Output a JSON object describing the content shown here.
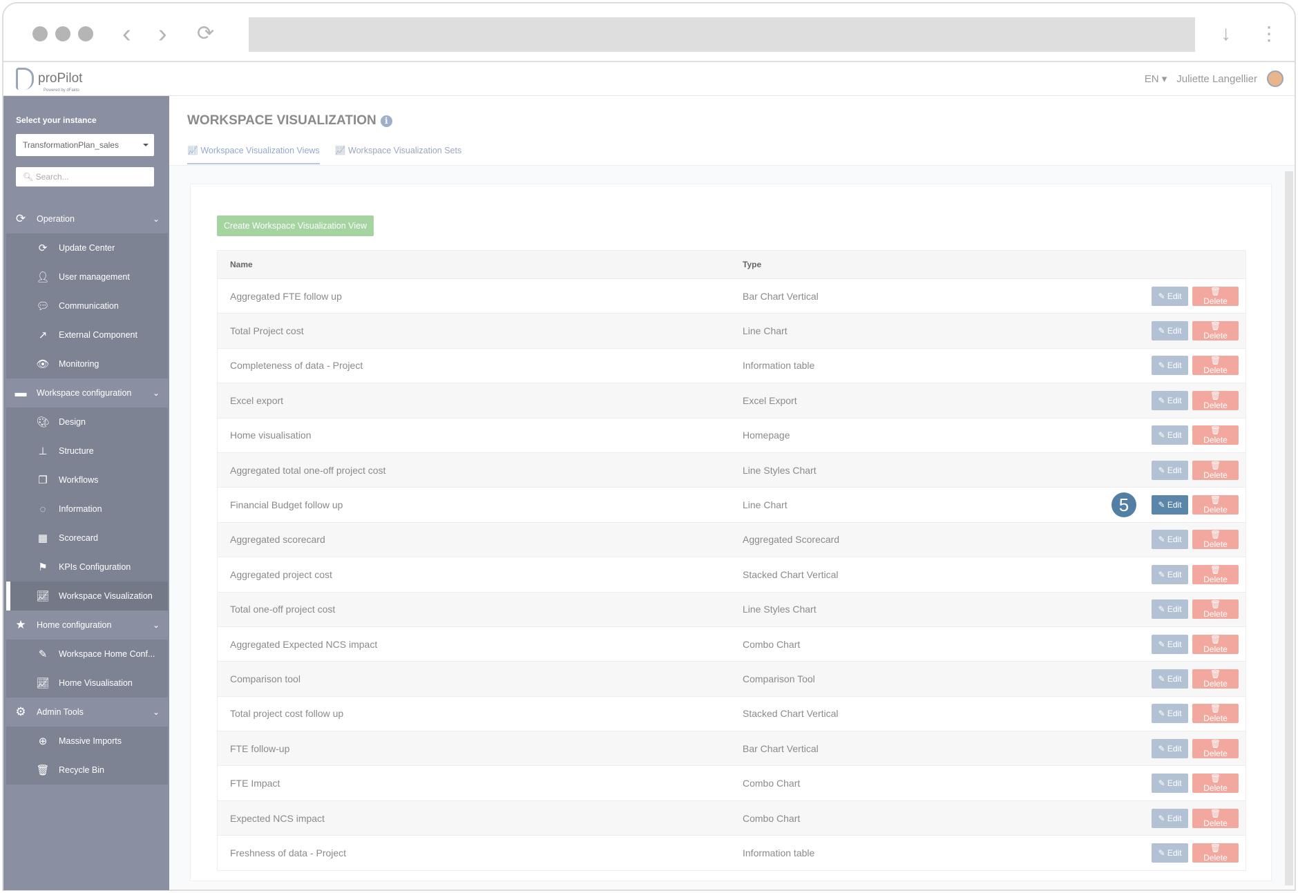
{
  "header": {
    "app_name": "proPilot",
    "powered_by": "Powered by dFakto",
    "language": "EN",
    "user_name": "Juliette Langellier"
  },
  "sidebar": {
    "instance_label": "Select your instance",
    "instance_value": "TransformationPlan_sales",
    "search_placeholder": "Search...",
    "groups": [
      {
        "label": "Operation",
        "icon": "refresh-icon",
        "items": [
          {
            "label": "Update Center",
            "icon": "refresh-icon"
          },
          {
            "label": "User management",
            "icon": "user-icon"
          },
          {
            "label": "Communication",
            "icon": "comments-icon"
          },
          {
            "label": "External Component",
            "icon": "share-square-icon"
          },
          {
            "label": "Monitoring",
            "icon": "eye-icon"
          }
        ]
      },
      {
        "label": "Workspace configuration",
        "icon": "folder-icon",
        "items": [
          {
            "label": "Design",
            "icon": "palette-icon"
          },
          {
            "label": "Structure",
            "icon": "sitemap-icon"
          },
          {
            "label": "Workflows",
            "icon": "copy-icon"
          },
          {
            "label": "Information",
            "icon": "comment-icon"
          },
          {
            "label": "Scorecard",
            "icon": "table-icon"
          },
          {
            "label": "KPIs Configuration",
            "icon": "flag-icon"
          },
          {
            "label": "Workspace Visualization",
            "icon": "line-chart-icon",
            "active": true
          }
        ]
      },
      {
        "label": "Home configuration",
        "icon": "star-icon",
        "items": [
          {
            "label": "Workspace Home Conf...",
            "icon": "edit-icon"
          },
          {
            "label": "Home Visualisation",
            "icon": "line-chart-icon"
          }
        ]
      },
      {
        "label": "Admin Tools",
        "icon": "gear-icon",
        "items": [
          {
            "label": "Massive Imports",
            "icon": "download-circle-icon"
          },
          {
            "label": "Recycle Bin",
            "icon": "trash-icon"
          }
        ]
      }
    ]
  },
  "main": {
    "title": "WORKSPACE VISUALIZATION",
    "tabs": [
      {
        "label": "Workspace Visualization Views",
        "active": true
      },
      {
        "label": "Workspace Visualization Sets"
      }
    ],
    "create_label": "Create Workspace Visualization View",
    "columns": [
      "Name",
      "Type"
    ],
    "edit_label": "Edit",
    "delete_label": "Delete",
    "step_badge": "5",
    "rows": [
      {
        "name": "Aggregated FTE follow up",
        "type": "Bar Chart Vertical"
      },
      {
        "name": "Total Project cost",
        "type": "Line Chart"
      },
      {
        "name": "Completeness of data - Project",
        "type": "Information table"
      },
      {
        "name": "Excel export",
        "type": "Excel Export"
      },
      {
        "name": "Home visualisation",
        "type": "Homepage"
      },
      {
        "name": "Aggregated total one-off project cost",
        "type": "Line Styles Chart"
      },
      {
        "name": "Financial Budget follow up",
        "type": "Line Chart",
        "highlighted": true
      },
      {
        "name": "Aggregated scorecard",
        "type": "Aggregated Scorecard"
      },
      {
        "name": "Aggregated project cost",
        "type": "Stacked Chart Vertical"
      },
      {
        "name": "Total one-off project cost",
        "type": "Line Styles Chart"
      },
      {
        "name": "Aggregated Expected NCS impact",
        "type": "Combo Chart"
      },
      {
        "name": "Comparison tool",
        "type": "Comparison Tool"
      },
      {
        "name": "Total project cost follow up",
        "type": "Stacked Chart Vertical"
      },
      {
        "name": "FTE follow-up",
        "type": "Bar Chart Vertical"
      },
      {
        "name": "FTE Impact",
        "type": "Combo Chart"
      },
      {
        "name": "Expected NCS impact",
        "type": "Combo Chart"
      },
      {
        "name": "Freshness of data - Project",
        "type": "Information table"
      }
    ]
  },
  "colors": {
    "sidebar": "#8a90a2",
    "create": "#a6d4a1",
    "edit": "#b2c2d4",
    "edit_highlight": "#5a86aa",
    "delete": "#f3a89f"
  }
}
